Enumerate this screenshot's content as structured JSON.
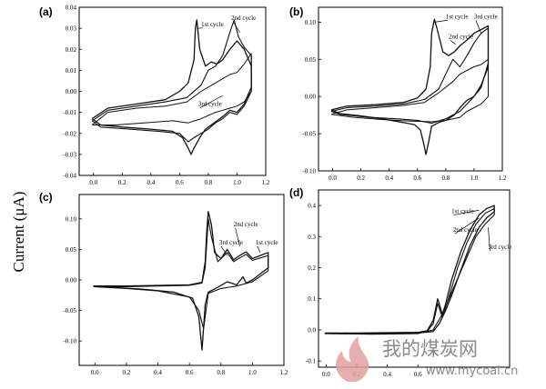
{
  "figure": {
    "ylabel": "Current (μA)"
  },
  "watermark": {
    "chinese": "我的煤炭网",
    "url": "www.mycoal.cn",
    "flame_color": "#e3a0a0"
  },
  "chart_data": [
    {
      "id": "a",
      "label": "(a)",
      "type": "line",
      "xlim": [
        -0.1,
        1.2
      ],
      "ylim": [
        -0.04,
        0.04
      ],
      "xticks": [
        0.0,
        0.2,
        0.4,
        0.6,
        0.8,
        1.0,
        1.2
      ],
      "yticks": [
        -0.04,
        -0.03,
        -0.02,
        -0.01,
        0.0,
        0.01,
        0.02,
        0.03,
        0.04
      ],
      "xtick_labels": [
        "0.0",
        "0.2",
        "0.4",
        "0.6",
        "0.8",
        "1.0",
        "1.2"
      ],
      "ytick_labels": [
        "-0.04",
        "-0.03",
        "-0.02",
        "-0.01",
        "0.00",
        "0.01",
        "0.02",
        "0.03",
        "0.04"
      ],
      "annotations": [
        {
          "text": "1st cycle",
          "x": 0.75,
          "y": 0.031,
          "to": [
            0.72,
            0.03
          ]
        },
        {
          "text": "2nd cycle",
          "x": 0.96,
          "y": 0.034,
          "to": [
            1.02,
            0.028
          ]
        },
        {
          "text": "3rd cycle",
          "x": 0.73,
          "y": -0.007,
          "to": [
            0.9,
            -0.002
          ]
        }
      ],
      "series": [
        {
          "x": [
            -0.01,
            0.1,
            0.3,
            0.5,
            0.6,
            0.66,
            0.7,
            0.71,
            0.72,
            0.74,
            0.78,
            0.82,
            0.86,
            0.9,
            0.95,
            1.0,
            1.05,
            1.1,
            1.1,
            1.05,
            1.0,
            0.95,
            0.9,
            0.86,
            0.82,
            0.78,
            0.74,
            0.7,
            0.68,
            0.66,
            0.62,
            0.55,
            0.4,
            0.2,
            0.05,
            -0.01
          ],
          "y": [
            -0.013,
            -0.008,
            -0.006,
            -0.004,
            0.0,
            0.004,
            0.015,
            0.03,
            0.034,
            0.02,
            0.012,
            0.014,
            0.013,
            0.015,
            0.02,
            0.024,
            0.02,
            0.012,
            0.002,
            -0.006,
            -0.01,
            -0.009,
            -0.012,
            -0.014,
            -0.016,
            -0.018,
            -0.022,
            -0.027,
            -0.03,
            -0.027,
            -0.022,
            -0.019,
            -0.018,
            -0.017,
            -0.016,
            -0.013
          ]
        },
        {
          "x": [
            -0.01,
            0.1,
            0.3,
            0.5,
            0.65,
            0.75,
            0.8,
            0.85,
            0.9,
            0.95,
            0.98,
            1.01,
            1.05,
            1.1,
            1.1,
            1.05,
            1.0,
            0.95,
            0.9,
            0.85,
            0.8,
            0.7,
            0.66,
            0.6,
            0.45,
            0.25,
            0.05,
            -0.01
          ],
          "y": [
            -0.014,
            -0.009,
            -0.007,
            -0.005,
            -0.003,
            0.003,
            0.01,
            0.012,
            0.017,
            0.028,
            0.034,
            0.026,
            0.021,
            0.017,
            0.0,
            -0.007,
            -0.011,
            -0.01,
            -0.013,
            -0.015,
            -0.018,
            -0.022,
            -0.024,
            -0.02,
            -0.019,
            -0.018,
            -0.017,
            -0.014
          ]
        },
        {
          "x": [
            -0.01,
            0.1,
            0.3,
            0.5,
            0.65,
            0.75,
            0.85,
            0.9,
            0.95,
            1.0,
            1.05,
            1.1,
            1.1,
            1.05,
            1.0,
            0.95,
            0.9,
            0.85,
            0.75,
            0.66,
            0.55,
            0.35,
            0.15,
            -0.01
          ],
          "y": [
            -0.016,
            -0.01,
            -0.008,
            -0.007,
            -0.005,
            0.0,
            0.004,
            0.006,
            0.008,
            0.009,
            0.013,
            0.018,
            0.0,
            -0.005,
            -0.007,
            -0.008,
            -0.009,
            -0.01,
            -0.013,
            -0.015,
            -0.014,
            -0.015,
            -0.016,
            -0.016
          ]
        }
      ]
    },
    {
      "id": "b",
      "label": "(b)",
      "type": "line",
      "xlim": [
        -0.1,
        1.2
      ],
      "ylim": [
        -0.1,
        0.12
      ],
      "xticks": [
        0.0,
        0.2,
        0.4,
        0.6,
        0.8,
        1.0,
        1.2
      ],
      "yticks": [
        -0.1,
        -0.05,
        0.0,
        0.05,
        0.1
      ],
      "xtick_labels": [
        "0.0",
        "0.2",
        "0.4",
        "0.6",
        "0.8",
        "1.0",
        "1.2"
      ],
      "ytick_labels": [
        "-0.10",
        "-0.05",
        "0.00",
        "0.05",
        "0.10"
      ],
      "annotations": [
        {
          "text": "1st cycle",
          "x": 0.8,
          "y": 0.105,
          "to": [
            0.72,
            0.1
          ]
        },
        {
          "text": "2nd cycle",
          "x": 0.82,
          "y": 0.078,
          "to": [
            0.87,
            0.07
          ]
        },
        {
          "text": "3rd cycle",
          "x": 1.0,
          "y": 0.105,
          "to": [
            1.05,
            0.085
          ]
        }
      ],
      "series": [
        {
          "x": [
            -0.01,
            0.1,
            0.3,
            0.5,
            0.6,
            0.66,
            0.69,
            0.7,
            0.72,
            0.74,
            0.78,
            0.82,
            0.86,
            0.9,
            0.95,
            1.0,
            1.05,
            1.1,
            1.1,
            1.05,
            1.0,
            0.95,
            0.9,
            0.86,
            0.8,
            0.75,
            0.7,
            0.68,
            0.66,
            0.64,
            0.62,
            0.58,
            0.5,
            0.35,
            0.2,
            0.05,
            -0.01
          ],
          "y": [
            -0.018,
            -0.013,
            -0.011,
            -0.008,
            -0.002,
            0.01,
            0.04,
            0.085,
            0.104,
            0.09,
            0.06,
            0.055,
            0.06,
            0.068,
            0.076,
            0.085,
            0.09,
            0.095,
            0.04,
            0.015,
            0.0,
            -0.005,
            -0.015,
            -0.025,
            -0.032,
            -0.035,
            -0.04,
            -0.06,
            -0.078,
            -0.06,
            -0.045,
            -0.038,
            -0.035,
            -0.03,
            -0.026,
            -0.023,
            -0.018
          ]
        },
        {
          "x": [
            -0.01,
            0.1,
            0.3,
            0.5,
            0.65,
            0.75,
            0.8,
            0.85,
            0.9,
            0.95,
            1.0,
            1.05,
            1.1,
            1.1,
            1.05,
            1.0,
            0.95,
            0.9,
            0.8,
            0.7,
            0.6,
            0.45,
            0.25,
            0.05,
            -0.01
          ],
          "y": [
            -0.02,
            -0.015,
            -0.013,
            -0.01,
            -0.004,
            0.01,
            0.03,
            0.05,
            0.04,
            0.055,
            0.072,
            0.085,
            0.092,
            0.045,
            0.012,
            0.0,
            -0.01,
            -0.02,
            -0.03,
            -0.036,
            -0.032,
            -0.03,
            -0.028,
            -0.024,
            -0.02
          ]
        },
        {
          "x": [
            -0.01,
            0.1,
            0.3,
            0.5,
            0.65,
            0.75,
            0.85,
            0.9,
            0.95,
            1.0,
            1.05,
            1.1,
            1.1,
            1.05,
            1.0,
            0.95,
            0.9,
            0.8,
            0.7,
            0.55,
            0.35,
            0.15,
            -0.01
          ],
          "y": [
            -0.024,
            -0.018,
            -0.015,
            -0.012,
            -0.008,
            0.005,
            0.02,
            0.03,
            0.035,
            0.04,
            0.043,
            0.05,
            0.0,
            -0.01,
            -0.015,
            -0.02,
            -0.028,
            -0.032,
            -0.034,
            -0.033,
            -0.031,
            -0.028,
            -0.024
          ]
        }
      ]
    },
    {
      "id": "c",
      "label": "(c)",
      "type": "line",
      "xlim": [
        -0.1,
        1.2
      ],
      "ylim": [
        -0.14,
        0.14
      ],
      "xticks": [
        0.0,
        0.2,
        0.4,
        0.6,
        0.8,
        1.0,
        1.2
      ],
      "yticks": [
        -0.1,
        -0.05,
        0.0,
        0.05,
        0.1
      ],
      "xtick_labels": [
        "0.0",
        "0.2",
        "0.4",
        "0.6",
        "0.8",
        "1.0",
        "1.2"
      ],
      "ytick_labels": [
        "-0.10",
        "-0.05",
        "0.00",
        "0.05",
        "0.10"
      ],
      "annotations": [
        {
          "text": "2nd cycle",
          "x": 0.88,
          "y": 0.088,
          "to": [
            0.92,
            0.055
          ]
        },
        {
          "text": "3rd cycle",
          "x": 0.79,
          "y": 0.058,
          "to": [
            0.84,
            0.04
          ]
        },
        {
          "text": "1st cycle",
          "x": 1.02,
          "y": 0.058,
          "to": [
            1.05,
            0.045
          ]
        }
      ],
      "series": [
        {
          "x": [
            -0.01,
            0.2,
            0.4,
            0.6,
            0.68,
            0.7,
            0.71,
            0.72,
            0.74,
            0.76,
            0.8,
            0.84,
            0.88,
            0.92,
            0.96,
            1.0,
            1.05,
            1.1,
            1.1,
            1.0,
            0.96,
            0.94,
            0.9,
            0.84,
            0.78,
            0.72,
            0.7,
            0.68,
            0.66,
            0.62,
            0.5,
            0.3,
            0.1,
            -0.01
          ],
          "y": [
            -0.01,
            -0.01,
            -0.009,
            -0.008,
            -0.004,
            0.03,
            0.08,
            0.112,
            0.09,
            0.045,
            0.035,
            0.05,
            0.033,
            0.04,
            0.046,
            0.035,
            0.04,
            0.045,
            0.02,
            0.0,
            -0.005,
            0.005,
            -0.008,
            -0.003,
            -0.012,
            -0.02,
            -0.04,
            -0.115,
            -0.06,
            -0.03,
            -0.02,
            -0.015,
            -0.012,
            -0.01
          ]
        },
        {
          "x": [
            -0.01,
            0.2,
            0.4,
            0.6,
            0.68,
            0.7,
            0.72,
            0.74,
            0.78,
            0.84,
            0.88,
            0.92,
            0.96,
            1.0,
            1.05,
            1.1,
            1.1,
            1.0,
            0.9,
            0.8,
            0.72,
            0.69,
            0.66,
            0.6,
            0.4,
            0.2,
            -0.01
          ],
          "y": [
            -0.011,
            -0.011,
            -0.01,
            -0.009,
            -0.005,
            0.02,
            0.1,
            0.07,
            0.03,
            0.045,
            0.03,
            0.036,
            0.042,
            0.032,
            0.036,
            0.04,
            0.015,
            -0.003,
            -0.01,
            -0.014,
            -0.022,
            -0.08,
            -0.05,
            -0.028,
            -0.018,
            -0.014,
            -0.011
          ]
        }
      ]
    },
    {
      "id": "d",
      "label": "(d)",
      "type": "line",
      "xlim": [
        -0.05,
        1.2
      ],
      "ylim": [
        -0.12,
        0.45
      ],
      "xticks": [
        0.0,
        0.2,
        0.4,
        0.6
      ],
      "yticks": [
        -0.1,
        0.0,
        0.1,
        0.2,
        0.3,
        0.4
      ],
      "xtick_labels": [
        "0.0",
        "0.2",
        "0.4",
        "0.6"
      ],
      "ytick_labels": [
        "-0.1",
        "0.0",
        "0.1",
        "0.2",
        "0.3",
        "0.4"
      ],
      "annotations": [
        {
          "text": "1st cycle",
          "x": 0.82,
          "y": 0.375,
          "to": [
            1.0,
            0.385
          ]
        },
        {
          "text": "2nd cycle",
          "x": 0.83,
          "y": 0.315,
          "to": [
            1.0,
            0.36
          ]
        },
        {
          "text": "3rd cycle",
          "x": 1.06,
          "y": 0.26,
          "to": [
            1.06,
            0.33
          ]
        }
      ],
      "series": [
        {
          "x": [
            -0.01,
            0.2,
            0.4,
            0.6,
            0.66,
            0.7,
            0.73,
            0.76,
            0.78,
            0.82,
            0.88,
            0.94,
            1.0,
            1.05,
            1.1,
            1.1,
            1.05,
            1.0,
            0.94,
            0.88,
            0.82,
            0.78,
            0.74,
            0.7,
            0.6,
            0.4,
            0.2,
            -0.01
          ],
          "y": [
            -0.01,
            -0.01,
            -0.009,
            -0.008,
            -0.003,
            0.03,
            0.1,
            0.05,
            0.08,
            0.16,
            0.25,
            0.32,
            0.37,
            0.39,
            0.4,
            0.38,
            0.36,
            0.33,
            0.27,
            0.19,
            0.11,
            0.06,
            0.02,
            -0.005,
            -0.01,
            -0.012,
            -0.012,
            -0.01
          ]
        },
        {
          "x": [
            -0.01,
            0.2,
            0.4,
            0.6,
            0.66,
            0.7,
            0.73,
            0.76,
            0.8,
            0.86,
            0.92,
            0.98,
            1.04,
            1.1,
            1.1,
            1.04,
            0.98,
            0.9,
            0.82,
            0.76,
            0.7,
            0.6,
            0.3,
            -0.01
          ],
          "y": [
            -0.012,
            -0.012,
            -0.011,
            -0.01,
            -0.005,
            0.02,
            0.085,
            0.04,
            0.1,
            0.2,
            0.28,
            0.34,
            0.375,
            0.39,
            0.37,
            0.34,
            0.3,
            0.21,
            0.12,
            0.05,
            0.0,
            -0.012,
            -0.014,
            -0.012
          ]
        }
      ]
    }
  ]
}
